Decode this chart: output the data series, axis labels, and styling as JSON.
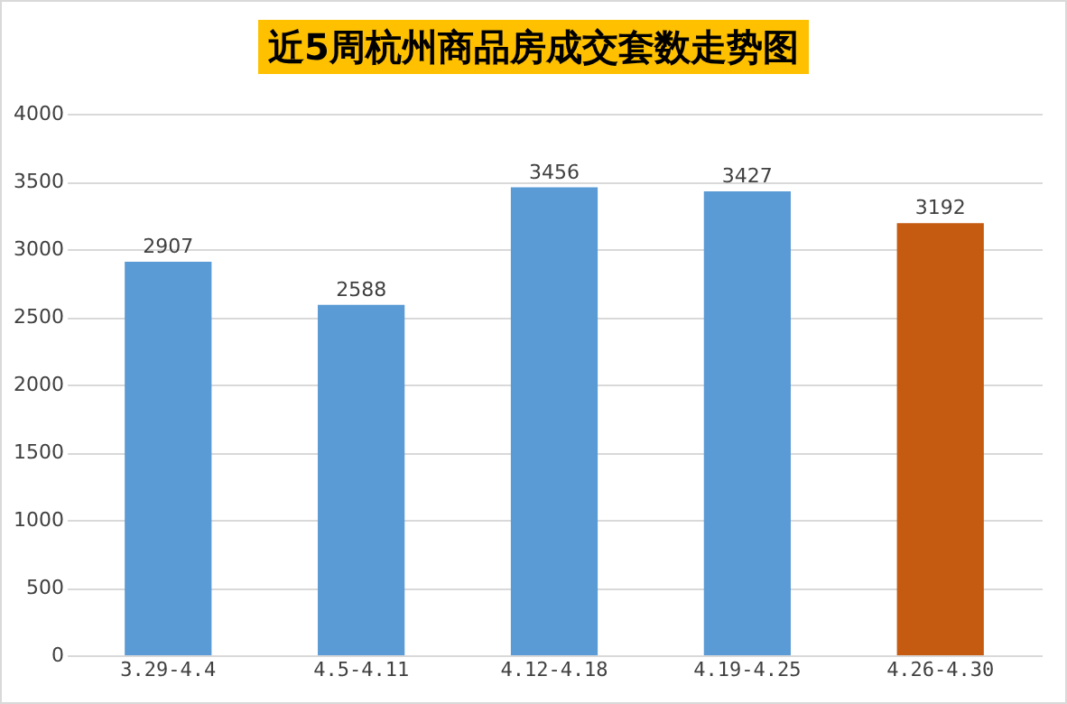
{
  "chart_data": {
    "type": "bar",
    "title": "近5周杭州商品房成交套数走势图",
    "categories": [
      "3.29-4.4",
      "4.5-4.11",
      "4.12-4.18",
      "4.19-4.25",
      "4.26-4.30"
    ],
    "values": [
      2907,
      2588,
      3456,
      3427,
      3192
    ],
    "colors": [
      "#5b9bd5",
      "#5b9bd5",
      "#5b9bd5",
      "#5b9bd5",
      "#c55a11"
    ],
    "ylim": [
      0,
      4000
    ],
    "yticks": [
      0,
      500,
      1000,
      1500,
      2000,
      2500,
      3000,
      3500,
      4000
    ],
    "grid": "y",
    "data_labels": true,
    "legend": false
  }
}
